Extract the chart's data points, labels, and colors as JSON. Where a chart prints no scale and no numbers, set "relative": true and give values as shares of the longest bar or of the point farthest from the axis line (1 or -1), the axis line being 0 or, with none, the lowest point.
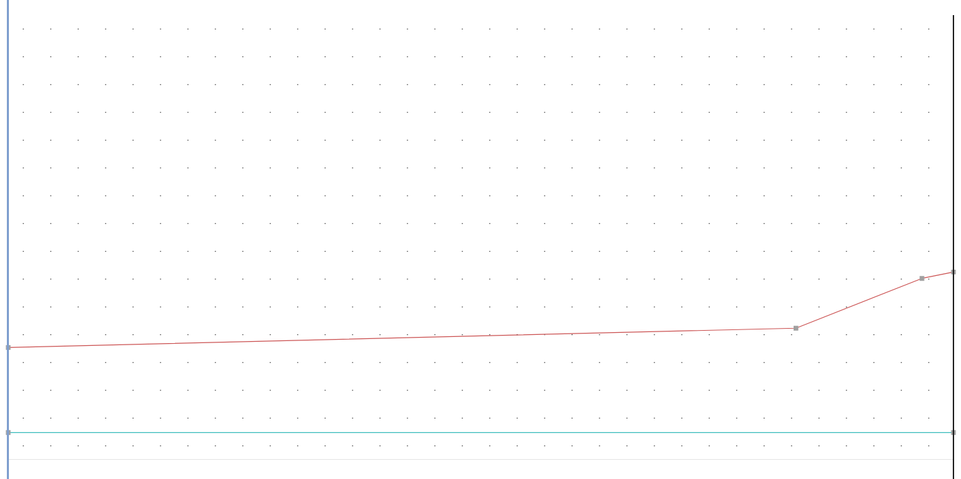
{
  "chart_data": {
    "type": "line",
    "relative": true,
    "categories": [
      null,
      null,
      null,
      null,
      null,
      null,
      null,
      null,
      null,
      null,
      null,
      null,
      null,
      null,
      null,
      null,
      null,
      null,
      null,
      null,
      null,
      null,
      null,
      null,
      null,
      null,
      null,
      null,
      null,
      null,
      null
    ],
    "series": [
      {
        "color": "#cc5555",
        "values": [
          0.53,
          null,
          null,
          null,
          null,
          null,
          null,
          null,
          null,
          null,
          null,
          null,
          null,
          null,
          null,
          null,
          null,
          null,
          null,
          null,
          null,
          null,
          null,
          null,
          null,
          0.65,
          null,
          null,
          null,
          0.96,
          1
        ]
      },
      {
        "color": "#3cbcbc",
        "values": [
          0,
          null,
          null,
          null,
          null,
          null,
          null,
          null,
          null,
          null,
          null,
          null,
          null,
          null,
          null,
          null,
          null,
          null,
          null,
          null,
          null,
          null,
          null,
          null,
          null,
          null,
          null,
          null,
          null,
          null,
          0
        ]
      }
    ],
    "marker": "square"
  }
}
